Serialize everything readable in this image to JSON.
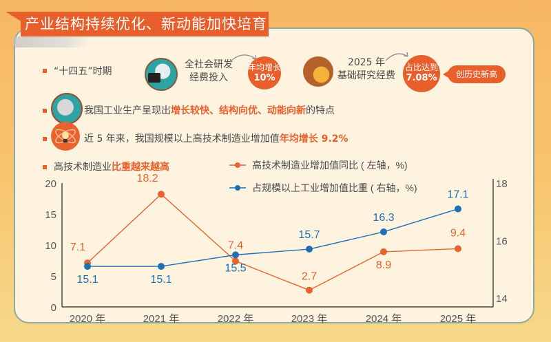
{
  "banner": {
    "title": "产业结构持续优化、新动能加快培育"
  },
  "row1": {
    "period_label": "“十四五”时期",
    "rd_label_line1": "全社会研发",
    "rd_label_line2": "经费投入",
    "rd_badge_line1": "年均增长",
    "rd_badge_line2": "10%",
    "basic_label_line1": "2025 年",
    "basic_label_line2": "基础研究经费",
    "basic_badge_line1": "占比达到",
    "basic_badge_line2": "7.08%",
    "record_pill": "创历史新高"
  },
  "row2": {
    "prefix": "我国工业生产呈现出",
    "highlight": "增长较快、结构向优、动能向新",
    "suffix": "的特点"
  },
  "row3": {
    "prefix": "近 5 年来，我国规模以上高技术制造业增加值",
    "highlight": "年均增长 9.2%"
  },
  "row4": {
    "prefix": "高技术制造业",
    "highlight": "比重越来越高"
  },
  "colors": {
    "orange": "#e8632e",
    "blue": "#1f6fb5",
    "accent": "#e95f2c"
  },
  "chart_data": {
    "type": "line",
    "title": "高技术制造业比重越来越高",
    "categories": [
      "2020 年",
      "2021 年",
      "2022 年",
      "2023 年",
      "2024 年",
      "2025 年"
    ],
    "series": [
      {
        "name": "高技术制造业增加值同比（左轴，%）",
        "axis": "left",
        "color": "#e8632e",
        "values": [
          7.1,
          18.2,
          7.4,
          2.7,
          8.9,
          9.4
        ],
        "labels": [
          "7.1",
          "18.2",
          "7.4",
          "2.7",
          "8.9",
          "9.4"
        ]
      },
      {
        "name": "占规模以上工业增加值比重（右轴，%）",
        "axis": "right",
        "color": "#1f6fb5",
        "values": [
          15.1,
          15.1,
          15.5,
          15.7,
          16.3,
          17.1
        ],
        "labels": [
          "15.1",
          "15.1",
          "15.5",
          "15.7",
          "16.3",
          "17.1"
        ]
      }
    ],
    "left_axis": {
      "ylim": [
        0,
        20
      ],
      "ticks": [
        "0",
        "5",
        "10",
        "15",
        "20"
      ]
    },
    "right_axis": {
      "ylim": [
        14,
        18
      ],
      "ticks": [
        "14",
        "16",
        "18"
      ]
    },
    "legend": [
      "高技术制造业增加值同比 ( 左轴，%)",
      "占规模以上工业增加值比重 ( 右轴，%)"
    ],
    "legend_position": "top-right",
    "grid": false
  }
}
